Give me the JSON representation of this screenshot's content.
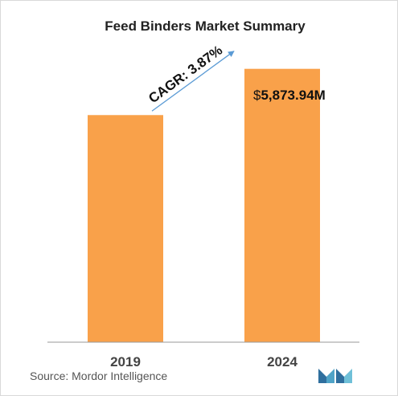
{
  "chart_data": {
    "type": "bar",
    "title": "Feed Binders Market Summary",
    "categories": [
      "2019",
      "2024"
    ],
    "values": [
      4880,
      5873.94
    ],
    "ylim": [
      0,
      6300
    ],
    "grid": false,
    "legend": "none",
    "annotations": {
      "cagr": "CAGR: 3.87%",
      "value_prefix": "$",
      "value_text": "5,873.94M"
    },
    "bar_color": "#F9A14A",
    "arrow_color": "#5B9BD5"
  },
  "source": "Source: Mordor Intelligence",
  "logo": {
    "icon": "mordor-intelligence-logo",
    "color": "#4FA3C7"
  }
}
